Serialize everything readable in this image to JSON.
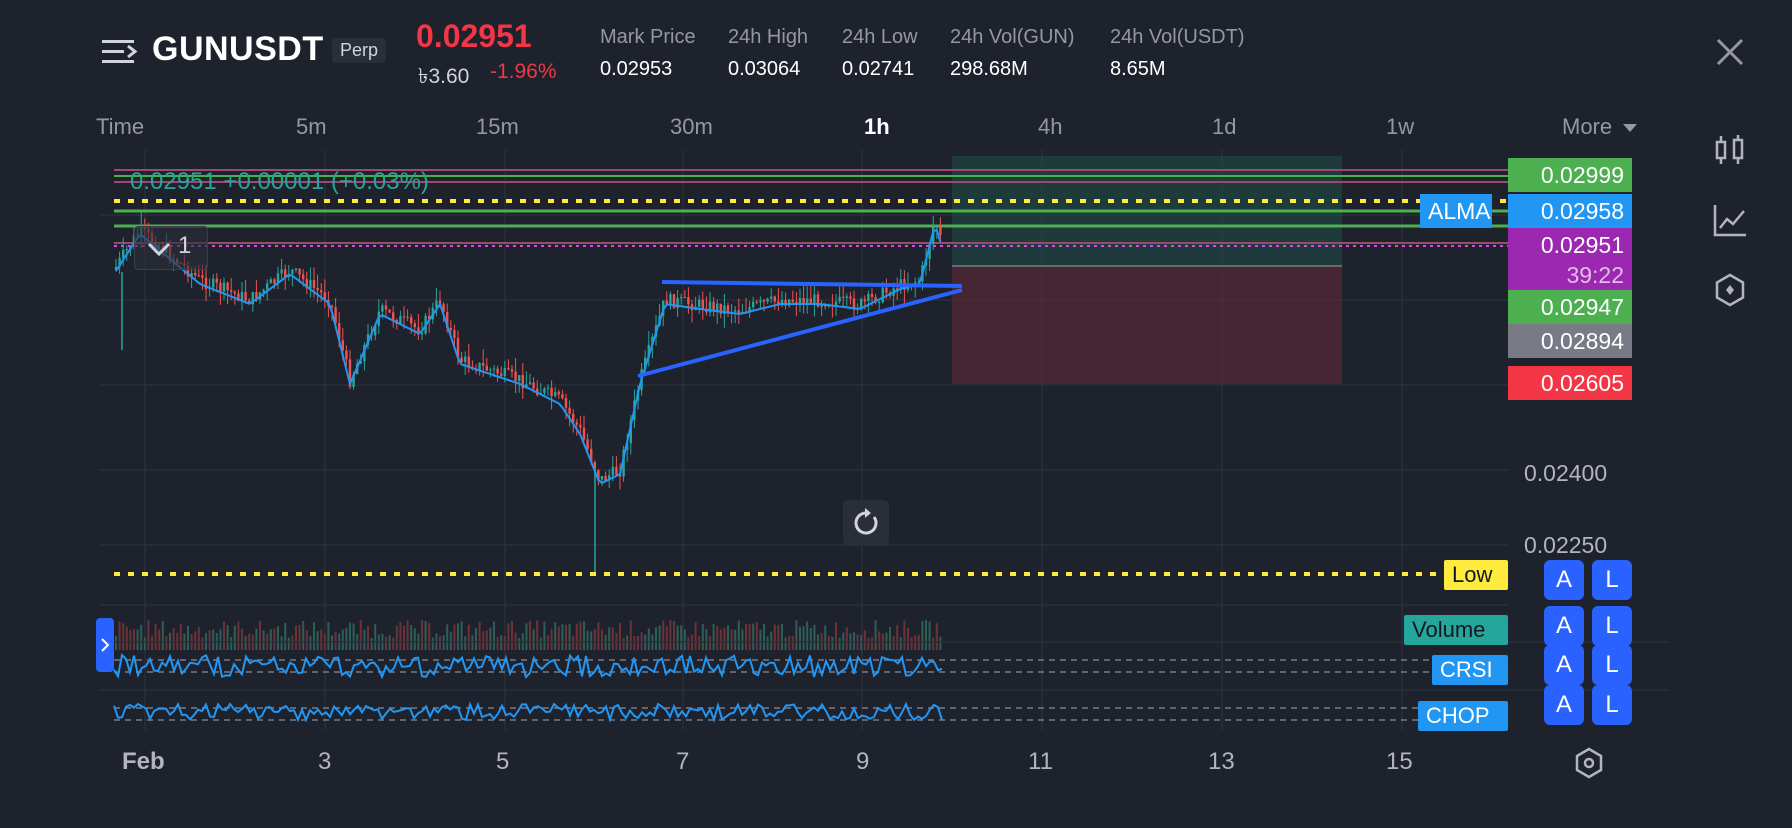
{
  "header": {
    "symbol": "GUNUSDT",
    "contract_type": "Perp",
    "last_price": "0.02951",
    "local_price": "৳3.60",
    "change_pct": "-1.96%",
    "stats": [
      {
        "label": "Mark Price",
        "value": "0.02953"
      },
      {
        "label": "24h High",
        "value": "0.03064"
      },
      {
        "label": "24h Low",
        "value": "0.02741"
      },
      {
        "label": "24h Vol(GUN)",
        "value": "298.68M"
      },
      {
        "label": "24h Vol(USDT)",
        "value": "8.65M"
      }
    ]
  },
  "timeframes": {
    "items": [
      "Time",
      "5m",
      "15m",
      "30m",
      "1h",
      "4h",
      "1d",
      "1w"
    ],
    "active": "1h",
    "more_label": "More"
  },
  "chart": {
    "legend_line": "0.02951  +0.00001 (+0.03%)",
    "pane_collapse_count": "1",
    "price_labels": [
      {
        "text": "0.02999",
        "color": "#4caf50"
      },
      {
        "text": "0.02958",
        "color": "#2196f3"
      },
      {
        "text": "0.02951",
        "color": "#9c27b0"
      },
      {
        "text": "39:22",
        "color": "#9c27b0"
      },
      {
        "text": "0.02947",
        "color": "#4caf50"
      },
      {
        "text": "0.02894",
        "color": "#787b86"
      },
      {
        "text": "0.02605",
        "color": "#f23645"
      }
    ],
    "alma_label": "ALMA",
    "axis_ticks": [
      "0.02400",
      "0.02250"
    ],
    "low_label": "Low",
    "indicators": [
      {
        "name": "Volume",
        "color": "#26a69a"
      },
      {
        "name": "CRSI",
        "color": "#2196f3"
      },
      {
        "name": "CHOP",
        "color": "#2196f3"
      }
    ],
    "alert_label": "A",
    "layout_label": "L",
    "date_ticks": [
      "Feb",
      "3",
      "5",
      "7",
      "9",
      "11",
      "13",
      "15"
    ]
  },
  "icons": {
    "menu": "menu-icon",
    "close": "close-icon",
    "chart_type": "candlestick-icon",
    "indicators": "indicator-icon",
    "settings": "hexagon-settings-icon",
    "reset": "reset-icon"
  }
}
